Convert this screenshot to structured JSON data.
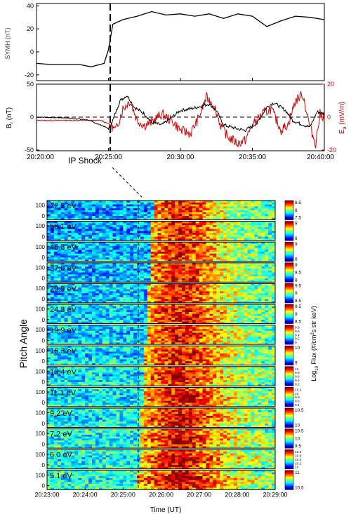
{
  "chart_data": [
    {
      "type": "line",
      "panel": "symh",
      "ylabel": "SYMH (nT)",
      "yticks": [
        40,
        20,
        0,
        -20
      ],
      "ylim": [
        -25,
        42
      ],
      "x_range": [
        "20:20:00",
        "20:40:00"
      ],
      "series": [
        {
          "values_t": [
            20.0,
            21.0,
            22.0,
            23.0,
            23.8,
            24.7,
            25.0,
            25.3,
            26.0,
            27.0,
            28.0,
            29.0,
            30.0,
            31.0,
            32.0,
            33.0,
            34.0,
            35.0,
            36.0,
            37.0,
            38.0,
            39.0,
            40.0
          ],
          "values": [
            -10,
            -11,
            -11,
            -11,
            -13,
            -10,
            2,
            24,
            28,
            31,
            35,
            32,
            33,
            31,
            33,
            29,
            33,
            31,
            22,
            27,
            31,
            30,
            28
          ]
        }
      ]
    },
    {
      "type": "line",
      "panel": "br_ea",
      "ylabel_left": "B",
      "ylabel_left_sub": "r",
      "ylabel_left_unit": " (nT)",
      "ylabel_right": "E",
      "ylabel_right_sub": "a",
      "ylabel_right_unit": " (mV/m)",
      "yticks_left": [
        50,
        0,
        -50
      ],
      "yticks_right": [
        20,
        0,
        -20
      ],
      "ylim_left": [
        -50,
        50
      ],
      "ylim_right": [
        -20,
        20
      ],
      "xticks": [
        "20:20:00",
        "20:25:00",
        "20:30:00",
        "20:35:00",
        "20:40:00"
      ],
      "annotation": "IP Shock",
      "shock_time": 25.0
    },
    {
      "type": "heatmap",
      "panel": "pitch_angle_spectrogram",
      "ylabel": "Pitch Angle",
      "xlabel": "Time (UT)",
      "xticks": [
        "20:23:00",
        "20:24:00",
        "20:25:00",
        "20:26:00",
        "20:27:00",
        "20:28:00",
        "20:29:00"
      ],
      "yticks": [
        "100",
        "0"
      ],
      "colorbar_label": "Log",
      "colorbar_label_sub": "10",
      "colorbar_label_rest": " Flux (#/cm",
      "colorbar_label_sup": "2",
      "colorbar_label_end": "s str keV)",
      "energies": [
        "72.5 eV",
        "58.1 eV",
        "46.8 eV",
        "37.0 eV",
        "29.9 eV",
        "24.3 eV",
        "19.9 eV",
        "16.3 eV",
        "13.4 eV",
        "11.1 eV",
        "9.2 eV",
        "7.2 eV",
        "6.0 eV",
        "5.1 eV"
      ],
      "colorbar_ticks": [
        [
          "8.5",
          "8",
          "7.5"
        ],
        [
          "9",
          "8"
        ],
        [
          "9",
          "8"
        ],
        [
          "9",
          "8.5",
          "8"
        ],
        [
          "9.5",
          "9",
          "8.5"
        ],
        [
          "9.5",
          "9",
          "8.5"
        ],
        [
          "9.8",
          "9.6",
          "9.4",
          "9.2",
          "9"
        ],
        [
          "10",
          "9"
        ],
        [
          "10",
          "9.8",
          "9.6",
          "9.4",
          "9.2"
        ],
        [
          "10.2",
          "10",
          "9.8",
          "9.6",
          "9.4"
        ],
        [
          "10.5",
          "10"
        ],
        [
          "10.5",
          "10",
          "9.5"
        ],
        [
          "10.8",
          "10.6",
          "10.4",
          "10.2",
          "10"
        ],
        [
          "11",
          "10.5"
        ]
      ],
      "shock_time": 25.4
    }
  ]
}
